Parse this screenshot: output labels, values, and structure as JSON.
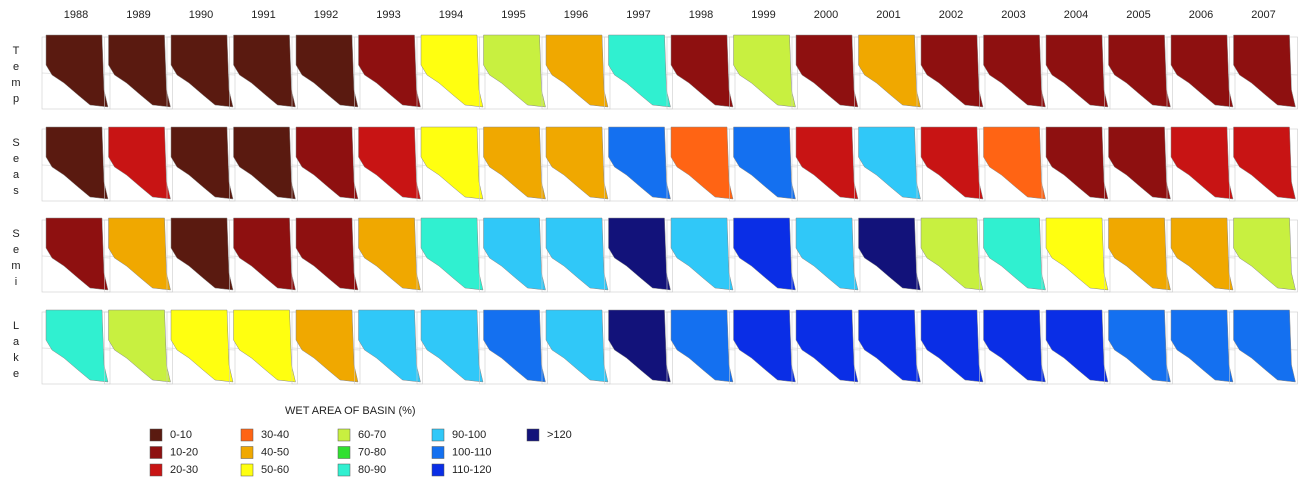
{
  "years": [
    "1988",
    "1989",
    "1990",
    "1991",
    "1992",
    "1993",
    "1994",
    "1995",
    "1996",
    "1997",
    "1998",
    "1999",
    "2000",
    "2001",
    "2002",
    "2003",
    "2004",
    "2005",
    "2006",
    "2007"
  ],
  "rows": [
    {
      "label": "Temp",
      "dominant_class": [
        0,
        0,
        0,
        0,
        0,
        1,
        5,
        6,
        4,
        8,
        1,
        6,
        1,
        4,
        1,
        1,
        1,
        1,
        1,
        1
      ]
    },
    {
      "label": "Seas",
      "dominant_class": [
        0,
        2,
        0,
        0,
        1,
        2,
        5,
        4,
        4,
        10,
        3,
        10,
        2,
        9,
        2,
        3,
        1,
        1,
        2,
        2
      ]
    },
    {
      "label": "Semi",
      "dominant_class": [
        1,
        4,
        0,
        1,
        1,
        4,
        8,
        9,
        9,
        12,
        9,
        11,
        9,
        12,
        6,
        8,
        5,
        4,
        4,
        6
      ]
    },
    {
      "label": "Lake",
      "dominant_class": [
        8,
        6,
        5,
        5,
        4,
        9,
        9,
        10,
        9,
        12,
        10,
        11,
        11,
        11,
        11,
        11,
        11,
        10,
        10,
        10
      ]
    }
  ],
  "legend": {
    "title": "WET AREA OF BASIN (%)",
    "items": [
      {
        "label": "0-10",
        "color": "#5a1a10"
      },
      {
        "label": "10-20",
        "color": "#8e1010"
      },
      {
        "label": "20-30",
        "color": "#c81414"
      },
      {
        "label": "30-40",
        "color": "#ff6414"
      },
      {
        "label": "40-50",
        "color": "#f0a800"
      },
      {
        "label": "50-60",
        "color": "#ffff10"
      },
      {
        "label": "60-70",
        "color": "#c8f040"
      },
      {
        "label": "70-80",
        "color": "#30e030"
      },
      {
        "label": "80-90",
        "color": "#30f0d0"
      },
      {
        "label": "90-100",
        "color": "#30c8f8"
      },
      {
        "label": "100-110",
        "color": "#1470f0"
      },
      {
        "label": "110-120",
        "color": "#0a2ee6"
      },
      {
        "label": ">120",
        "color": "#12127a"
      }
    ]
  }
}
